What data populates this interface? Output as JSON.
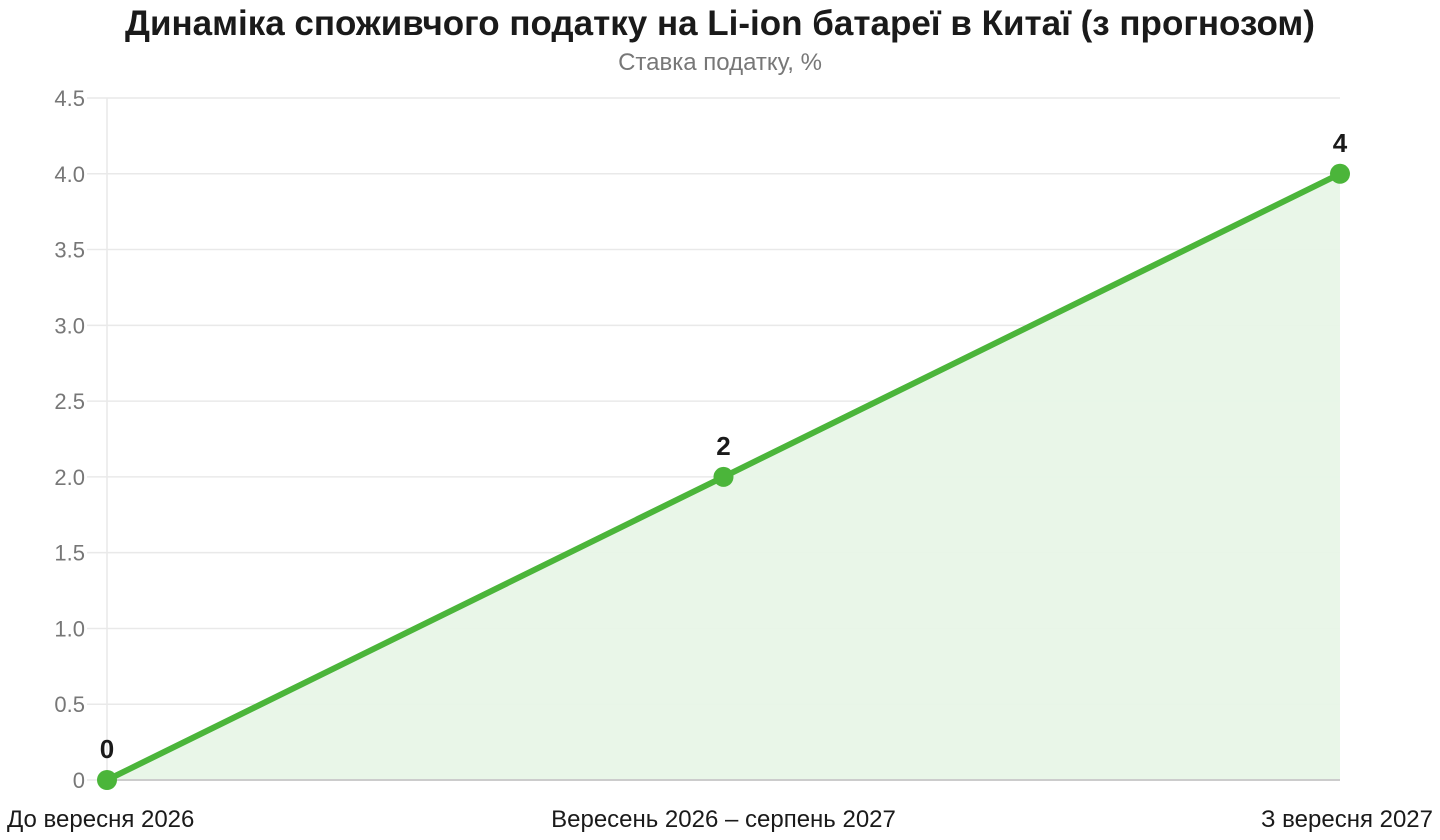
{
  "chart_data": {
    "type": "area",
    "title": "Динаміка споживчого податку на Li-ion батареї в Китаї (з прогнозом)",
    "subtitle": "Ставка податку, %",
    "categories": [
      "До вересня 2026",
      "Вересень 2026 – серпень 2027",
      "З вересня 2027"
    ],
    "values": [
      0,
      2,
      4
    ],
    "data_labels": [
      "0",
      "2",
      "4"
    ],
    "ylim": [
      0,
      4.5
    ],
    "yticks": [
      "0",
      "0.5",
      "1.0",
      "1.5",
      "2.0",
      "2.5",
      "3.0",
      "3.5",
      "4.0",
      "4.5"
    ],
    "ytick_values": [
      0,
      0.5,
      1,
      1.5,
      2,
      2.5,
      3,
      3.5,
      4,
      4.5
    ],
    "grid": true,
    "legend": "none",
    "colors": {
      "line": "#4bb53a",
      "fill": "#e8f5e7",
      "grid": "#e9e9e9",
      "axis": "#cccccc"
    }
  }
}
